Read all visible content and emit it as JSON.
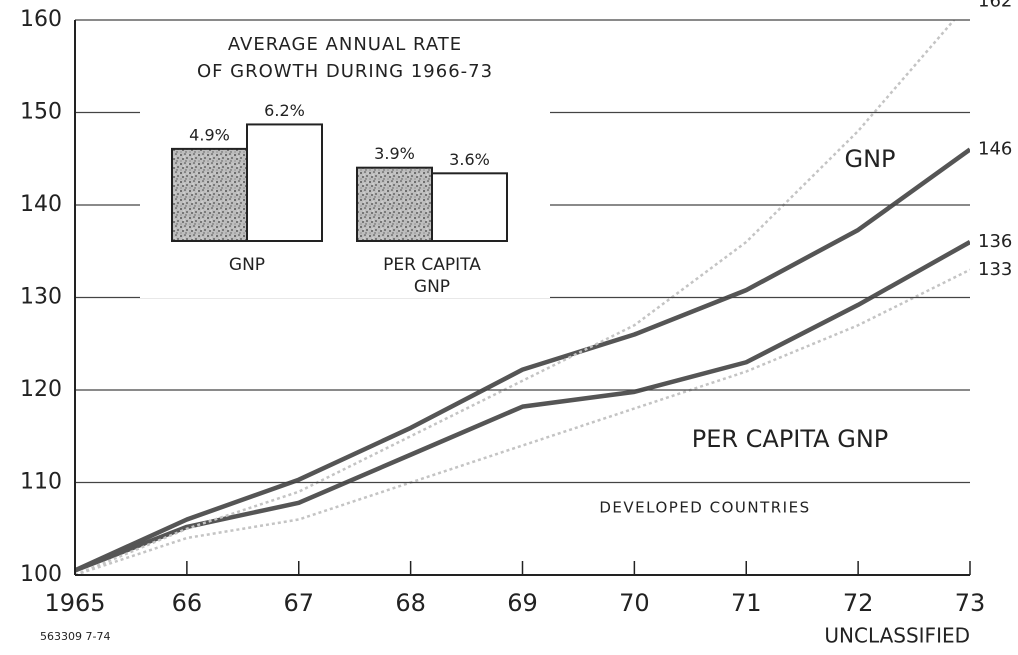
{
  "chart_data": [
    {
      "type": "line",
      "categories": [
        "1965",
        "66",
        "67",
        "68",
        "69",
        "70",
        "71",
        "72",
        "73"
      ],
      "series": [
        {
          "name": "GNP",
          "color": "#555555",
          "values": [
            100.5,
            106,
            110.3,
            115.9,
            122.2,
            126,
            130.8,
            137.3,
            146
          ]
        },
        {
          "name": "PER CAPITA GNP",
          "color": "#555555",
          "values": [
            100.5,
            105.2,
            107.8,
            113,
            118.2,
            119.8,
            123,
            129.2,
            136
          ]
        },
        {
          "color": "#c4c4c4",
          "dashed": true,
          "values": [
            100,
            105,
            109,
            115,
            121,
            127,
            136,
            148,
            162
          ]
        },
        {
          "color": "#c4c4c4",
          "dashed": true,
          "values": [
            100,
            104,
            106,
            110,
            114,
            118,
            122,
            127,
            133
          ]
        }
      ],
      "annotations": [
        "DEVELOPED COUNTRIES"
      ],
      "ylim": [
        100,
        160
      ],
      "yticks": [
        100,
        110,
        120,
        130,
        140,
        150,
        160
      ],
      "grid": true,
      "footer": [
        "563309 7-74",
        "UNCLASSIFIED"
      ]
    },
    {
      "type": "bar",
      "title": [
        "AVERAGE ANNUAL RATE",
        "OF GROWTH DURING  1966-73"
      ],
      "categories": [
        [
          "GNP"
        ],
        [
          "PER CAPITA",
          "GNP"
        ]
      ],
      "series": [
        {
          "color": "#8a8a8a",
          "pattern": "stipple",
          "values": [
            4.9,
            3.9
          ],
          "value_labels": [
            "4.9%",
            "3.9%"
          ]
        },
        {
          "color": "#ffffff",
          "values": [
            6.2,
            3.6
          ],
          "value_labels": [
            "6.2%",
            "3.6%"
          ]
        }
      ]
    }
  ]
}
